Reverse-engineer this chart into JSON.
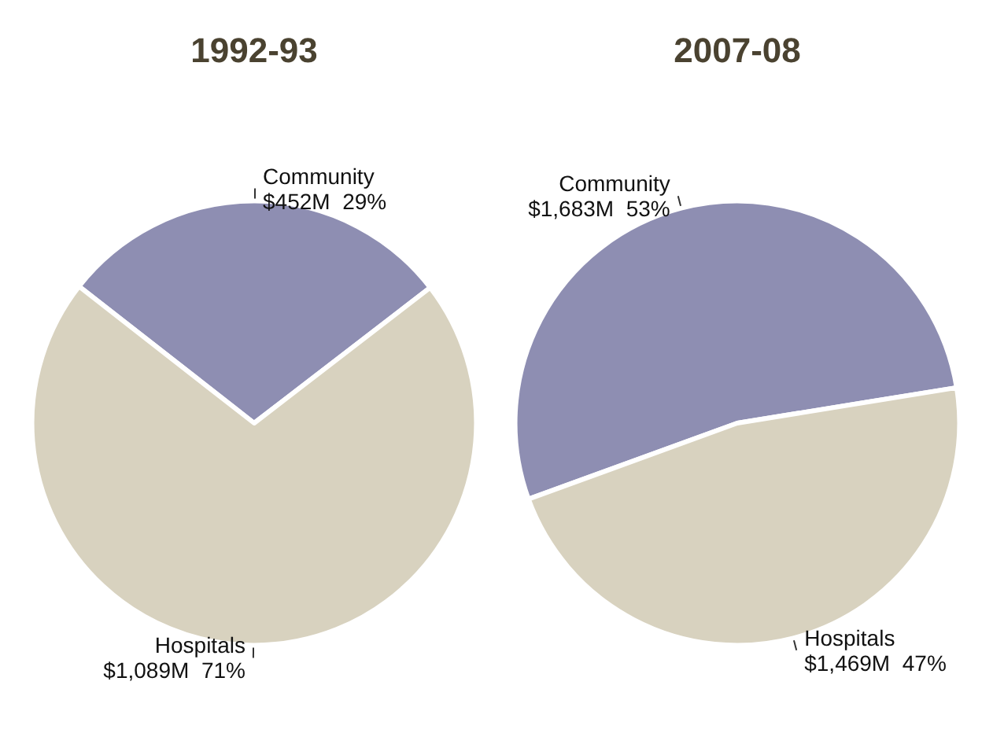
{
  "chart_data": [
    {
      "type": "pie",
      "title": "1992-93",
      "categories": [
        "Community",
        "Hospitals"
      ],
      "values": [
        29,
        71
      ],
      "colors": [
        "#8e8eb2",
        "#d8d2bf"
      ],
      "value_labels": [
        "$452M  29%",
        "$1,089M  71%"
      ]
    },
    {
      "type": "pie",
      "title": "2007-08",
      "categories": [
        "Community",
        "Hospitals"
      ],
      "values": [
        53,
        47
      ],
      "colors": [
        "#8e8eb2",
        "#d8d2bf"
      ],
      "value_labels": [
        "$1,683M  53%",
        "$1,469M  47%"
      ]
    }
  ]
}
